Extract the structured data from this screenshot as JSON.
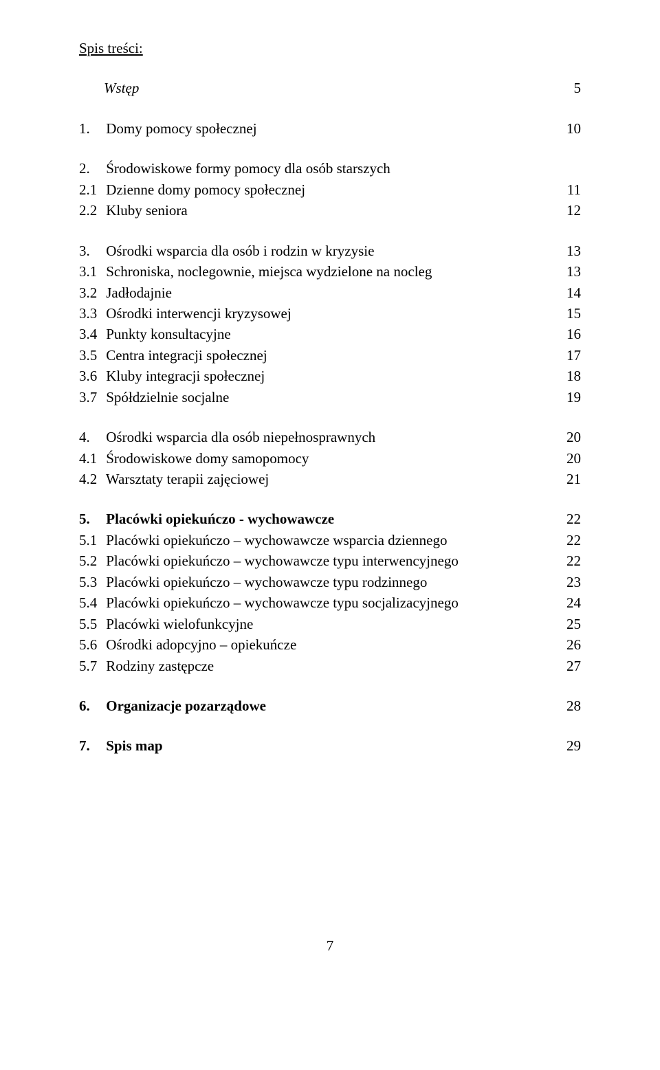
{
  "title": "Spis treści:",
  "footer_page": "7",
  "blocks": [
    {
      "rows": [
        {
          "num": "",
          "label": "Wstęp",
          "page": "5",
          "italic": true,
          "bold": false,
          "indentTop": true
        }
      ]
    },
    {
      "rows": [
        {
          "num": "1.",
          "label": "Domy pomocy społecznej",
          "page": "10",
          "italic": false,
          "bold": false,
          "indentTop": false
        }
      ]
    },
    {
      "rows": [
        {
          "num": "2.",
          "label": "Środowiskowe formy pomocy dla osób starszych",
          "page": "",
          "italic": false,
          "bold": false,
          "indentTop": false
        },
        {
          "num": "2.1",
          "label": "Dzienne domy pomocy społecznej",
          "page": "11",
          "italic": false,
          "bold": false,
          "indentTop": false
        },
        {
          "num": "2.2",
          "label": "Kluby seniora",
          "page": "12",
          "italic": false,
          "bold": false,
          "indentTop": false
        }
      ]
    },
    {
      "rows": [
        {
          "num": "3.",
          "label": "Ośrodki wsparcia dla osób i rodzin w kryzysie",
          "page": "13",
          "italic": false,
          "bold": false,
          "indentTop": false
        },
        {
          "num": "3.1",
          "label": "Schroniska, noclegownie, miejsca wydzielone na nocleg",
          "page": "13",
          "italic": false,
          "bold": false,
          "indentTop": false
        },
        {
          "num": "3.2",
          "label": "Jadłodajnie",
          "page": "14",
          "italic": false,
          "bold": false,
          "indentTop": false
        },
        {
          "num": "3.3",
          "label": "Ośrodki interwencji kryzysowej",
          "page": "15",
          "italic": false,
          "bold": false,
          "indentTop": false
        },
        {
          "num": "3.4",
          "label": "Punkty konsultacyjne",
          "page": "16",
          "italic": false,
          "bold": false,
          "indentTop": false
        },
        {
          "num": "3.5",
          "label": "Centra integracji społecznej",
          "page": "17",
          "italic": false,
          "bold": false,
          "indentTop": false
        },
        {
          "num": "3.6",
          "label": "Kluby integracji społecznej",
          "page": "18",
          "italic": false,
          "bold": false,
          "indentTop": false
        },
        {
          "num": "3.7",
          "label": "Spółdzielnie socjalne",
          "page": "19",
          "italic": false,
          "bold": false,
          "indentTop": false
        }
      ]
    },
    {
      "rows": [
        {
          "num": "4.",
          "label": "Ośrodki wsparcia dla osób niepełnosprawnych",
          "page": "20",
          "italic": false,
          "bold": false,
          "indentTop": false
        },
        {
          "num": "4.1",
          "label": "Środowiskowe domy samopomocy",
          "page": "20",
          "italic": false,
          "bold": false,
          "indentTop": false
        },
        {
          "num": "4.2",
          "label": "Warsztaty terapii zajęciowej",
          "page": "21",
          "italic": false,
          "bold": false,
          "indentTop": false
        }
      ]
    },
    {
      "rows": [
        {
          "num": "5.",
          "label": "Placówki opiekuńczo - wychowawcze",
          "page": "22",
          "italic": false,
          "bold": true,
          "indentTop": false
        },
        {
          "num": "5.1",
          "label": "Placówki opiekuńczo – wychowawcze wsparcia dziennego",
          "page": "22",
          "italic": false,
          "bold": false,
          "indentTop": false
        },
        {
          "num": "5.2",
          "label": "Placówki opiekuńczo – wychowawcze typu interwencyjnego",
          "page": "22",
          "italic": false,
          "bold": false,
          "indentTop": false
        },
        {
          "num": "5.3",
          "label": "Placówki opiekuńczo – wychowawcze typu rodzinnego",
          "page": "23",
          "italic": false,
          "bold": false,
          "indentTop": false
        },
        {
          "num": "5.4",
          "label": "Placówki opiekuńczo – wychowawcze typu socjalizacyjnego",
          "page": "24",
          "italic": false,
          "bold": false,
          "indentTop": false
        },
        {
          "num": "5.5",
          "label": "Placówki wielofunkcyjne",
          "page": "25",
          "italic": false,
          "bold": false,
          "indentTop": false
        },
        {
          "num": "5.6",
          "label": "Ośrodki adopcyjno – opiekuńcze",
          "page": "26",
          "italic": false,
          "bold": false,
          "indentTop": false
        },
        {
          "num": "5.7",
          "label": "Rodziny zastępcze",
          "page": "27",
          "italic": false,
          "bold": false,
          "indentTop": false
        }
      ]
    },
    {
      "rows": [
        {
          "num": "6.",
          "label": "Organizacje pozarządowe",
          "page": "28",
          "italic": false,
          "bold": true,
          "indentTop": false
        }
      ]
    },
    {
      "rows": [
        {
          "num": "7.",
          "label": "Spis map",
          "page": "29",
          "italic": false,
          "bold": true,
          "indentTop": false
        }
      ]
    }
  ]
}
